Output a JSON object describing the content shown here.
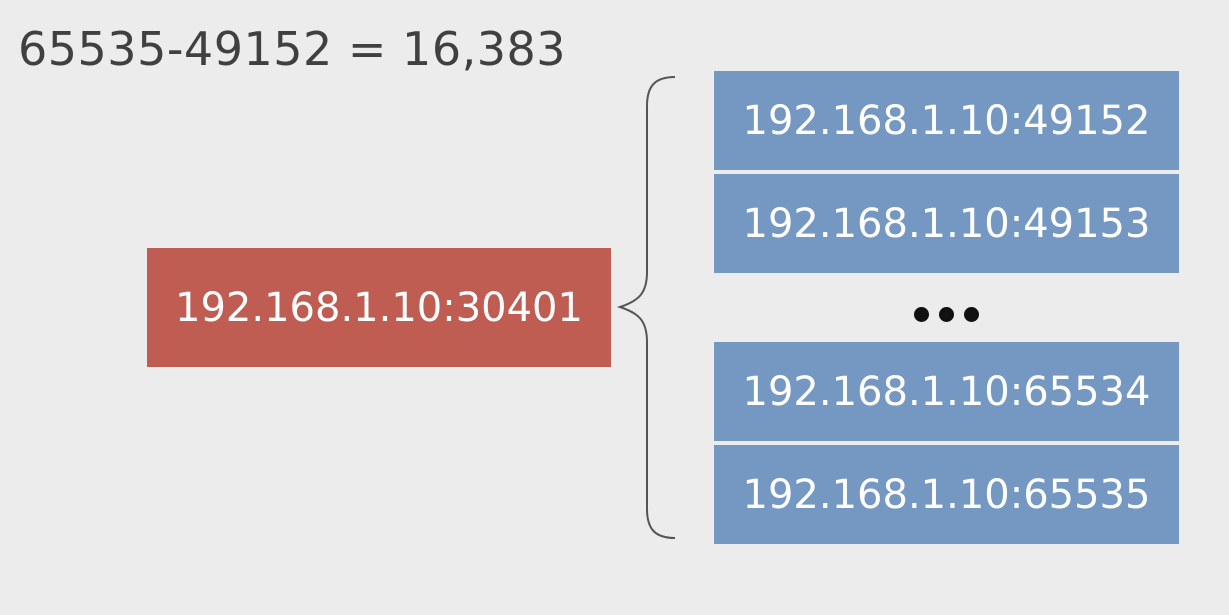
{
  "equation": "65535-49152 = 16,383",
  "source": {
    "label": "192.168.1.10:30401",
    "color": "#c05d52"
  },
  "ports": [
    "192.168.1.10:49152",
    "192.168.1.10:49153",
    "192.168.1.10:65534",
    "192.168.1.10:65535"
  ],
  "port_color": "#7598c3",
  "brace_color": "#555555",
  "background": "#ececec"
}
